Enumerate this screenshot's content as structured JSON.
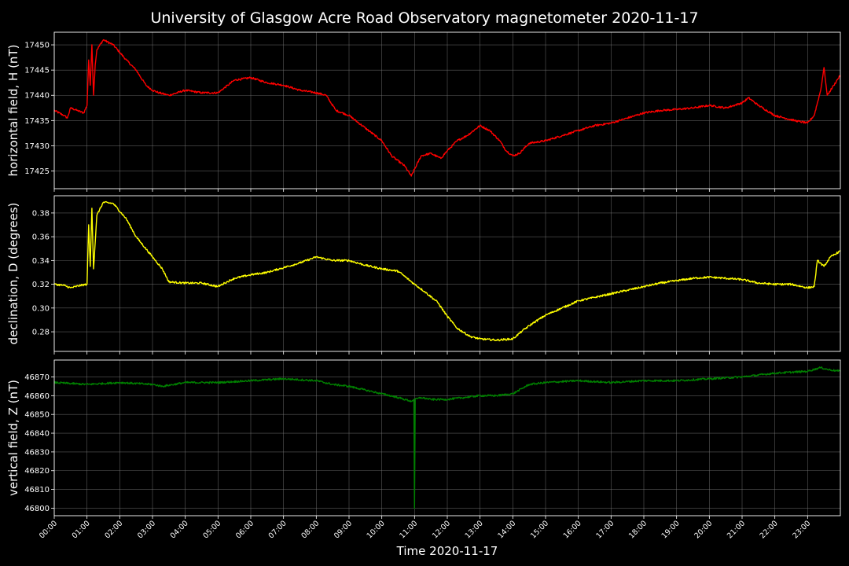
{
  "figure": {
    "title": "University of Glasgow Acre Road Observatory magnetometer 2020-11-17",
    "xlabel": "Time 2020-11-17",
    "background": "#000000"
  },
  "chart_data": [
    {
      "type": "line",
      "ylabel": "horizontal field, H (nT)",
      "color": "#ff0000",
      "xlim": [
        0,
        24
      ],
      "ylim": [
        17421.5,
        17452.5
      ],
      "yticks": [
        "17425",
        "17430",
        "17435",
        "17440",
        "17445",
        "17450"
      ],
      "ytick_values": [
        17425,
        17430,
        17435,
        17440,
        17445,
        17450
      ],
      "x_hours": [
        0,
        0.3,
        0.4,
        0.5,
        0.7,
        0.9,
        1.0,
        1.05,
        1.1,
        1.15,
        1.2,
        1.25,
        1.3,
        1.5,
        1.8,
        2.2,
        2.5,
        2.8,
        3.0,
        3.2,
        3.5,
        4.0,
        4.5,
        5.0,
        5.3,
        5.5,
        6.0,
        6.5,
        7.0,
        7.5,
        8.0,
        8.3,
        8.6,
        9.0,
        9.5,
        10.0,
        10.3,
        10.7,
        10.9,
        11.2,
        11.5,
        11.8,
        12.0,
        12.3,
        12.6,
        13.0,
        13.3,
        13.6,
        13.8,
        14.0,
        14.2,
        14.5,
        15.0,
        15.5,
        16.0,
        16.5,
        17.0,
        17.5,
        18.0,
        18.5,
        19.0,
        19.5,
        20.0,
        20.5,
        21.0,
        21.2,
        21.5,
        22.0,
        22.3,
        22.6,
        23.0,
        23.2,
        23.4,
        23.5,
        23.6,
        23.8,
        24.0
      ],
      "values": [
        17437,
        17436,
        17435.5,
        17437.5,
        17437,
        17436.5,
        17438,
        17447,
        17442,
        17450,
        17440,
        17446,
        17449,
        17451,
        17450,
        17447,
        17445,
        17442,
        17441,
        17440.5,
        17440,
        17441,
        17440.5,
        17440.5,
        17442,
        17443,
        17443.5,
        17442.5,
        17442,
        17441,
        17440.5,
        17440,
        17437,
        17436,
        17433.5,
        17431,
        17428,
        17426,
        17424,
        17428,
        17428.5,
        17427.5,
        17429,
        17431,
        17432,
        17434,
        17433,
        17431,
        17429,
        17428,
        17428.5,
        17430.5,
        17431,
        17432,
        17433,
        17434,
        17434.5,
        17435.5,
        17436.5,
        17437,
        17437.2,
        17437.5,
        17438,
        17437.5,
        17438.5,
        17439.5,
        17438,
        17436,
        17435.5,
        17435,
        17434.5,
        17436,
        17441,
        17445.5,
        17440,
        17442,
        17444
      ]
    },
    {
      "type": "line",
      "ylabel": "declination, D (degrees)",
      "color": "#ffff00",
      "xlim": [
        0,
        24
      ],
      "ylim": [
        0.2635,
        0.3945
      ],
      "yticks": [
        "0.28",
        "0.30",
        "0.32",
        "0.34",
        "0.36",
        "0.38"
      ],
      "ytick_values": [
        0.28,
        0.3,
        0.32,
        0.34,
        0.36,
        0.38
      ],
      "x_hours": [
        0,
        0.3,
        0.5,
        0.8,
        1.0,
        1.05,
        1.1,
        1.15,
        1.2,
        1.3,
        1.5,
        1.8,
        2.2,
        2.5,
        3.0,
        3.3,
        3.5,
        4.0,
        4.5,
        5.0,
        5.2,
        5.5,
        6.0,
        6.5,
        7.0,
        7.5,
        8.0,
        8.5,
        9.0,
        9.5,
        10.0,
        10.5,
        11.0,
        11.3,
        11.7,
        12.0,
        12.3,
        12.7,
        13.0,
        13.5,
        14.0,
        14.3,
        14.6,
        15.0,
        15.5,
        16.0,
        16.5,
        17.0,
        17.5,
        18.0,
        18.5,
        19.0,
        19.5,
        20.0,
        20.5,
        21.0,
        21.5,
        22.0,
        22.5,
        23.0,
        23.2,
        23.3,
        23.5,
        23.7,
        24.0
      ],
      "values": [
        0.32,
        0.319,
        0.317,
        0.319,
        0.32,
        0.37,
        0.335,
        0.384,
        0.333,
        0.378,
        0.389,
        0.388,
        0.375,
        0.36,
        0.343,
        0.333,
        0.322,
        0.321,
        0.321,
        0.318,
        0.321,
        0.325,
        0.328,
        0.33,
        0.334,
        0.338,
        0.343,
        0.34,
        0.34,
        0.336,
        0.333,
        0.331,
        0.32,
        0.314,
        0.305,
        0.293,
        0.283,
        0.276,
        0.274,
        0.273,
        0.274,
        0.281,
        0.287,
        0.294,
        0.3,
        0.306,
        0.309,
        0.312,
        0.315,
        0.318,
        0.321,
        0.323,
        0.325,
        0.326,
        0.325,
        0.324,
        0.321,
        0.32,
        0.32,
        0.317,
        0.318,
        0.34,
        0.335,
        0.343,
        0.348
      ]
    },
    {
      "type": "line",
      "ylabel": "vertical field, Z (nT)",
      "color": "#008000",
      "xlim": [
        0,
        24
      ],
      "ylim": [
        46796,
        46879
      ],
      "yticks": [
        "46800",
        "46810",
        "46820",
        "46830",
        "46840",
        "46850",
        "46860",
        "46870"
      ],
      "ytick_values": [
        46800,
        46810,
        46820,
        46830,
        46840,
        46850,
        46860,
        46870
      ],
      "x_hours": [
        0,
        1.0,
        2.0,
        3.0,
        3.3,
        4.0,
        5.0,
        6.0,
        7.0,
        8.0,
        8.5,
        9.0,
        9.5,
        10.0,
        10.5,
        10.9,
        10.98,
        11.0,
        11.02,
        11.2,
        11.5,
        12.0,
        12.5,
        13.0,
        13.5,
        14.0,
        14.5,
        15.0,
        16.0,
        17.0,
        18.0,
        19.0,
        20.0,
        21.0,
        22.0,
        23.0,
        23.4,
        23.6,
        24.0
      ],
      "values": [
        46867,
        46866,
        46867,
        46866,
        46865,
        46867,
        46867,
        46868,
        46869,
        46868,
        46866,
        46865,
        46863,
        46861,
        46859,
        46857,
        46858,
        46800,
        46858,
        46859,
        46858,
        46858,
        46859,
        46860,
        46860,
        46861,
        46866,
        46867,
        46868,
        46867,
        46868,
        46868,
        46869,
        46870,
        46872,
        46873,
        46875,
        46874,
        46873
      ]
    }
  ],
  "xticks": [
    "00:00",
    "01:00",
    "02:00",
    "03:00",
    "04:00",
    "05:00",
    "06:00",
    "07:00",
    "08:00",
    "09:00",
    "10:00",
    "11:00",
    "12:00",
    "13:00",
    "14:00",
    "15:00",
    "16:00",
    "17:00",
    "18:00",
    "19:00",
    "20:00",
    "21:00",
    "22:00",
    "23:00"
  ]
}
